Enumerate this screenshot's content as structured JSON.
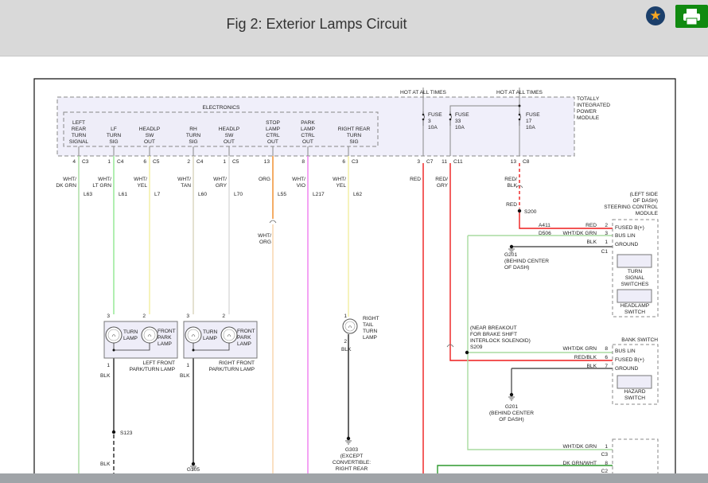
{
  "header": {
    "title": "Fig 2: Exterior Lamps Circuit",
    "favorite_icon": "star-icon",
    "print_icon": "printer-icon",
    "brand_color": "#108a10"
  },
  "diagram": {
    "tipm": {
      "label": [
        "TOTALLY",
        "INTEGRATED",
        "POWER",
        "MODULE"
      ],
      "hot": [
        "HOT AT ALL TIMES",
        "HOT AT ALL TIMES"
      ],
      "fuses": [
        {
          "lines": [
            "FUSE",
            "3",
            "10A"
          ]
        },
        {
          "lines": [
            "FUSE",
            "33",
            "10A"
          ]
        },
        {
          "lines": [
            "FUSE",
            "17",
            "10A"
          ]
        }
      ],
      "pins": [
        {
          "pin": "3",
          "conn": "C7",
          "color": [
            "RED"
          ]
        },
        {
          "pin": "11",
          "conn": "C11",
          "color": [
            "RED/",
            "GRY"
          ]
        },
        {
          "pin": "13",
          "conn": "C8",
          "color": [
            "RED/",
            "BLK"
          ]
        }
      ]
    },
    "electronics": {
      "label": "ELECTRONICS",
      "outputs": [
        {
          "lines": [
            "LEFT",
            "REAR",
            "TURN",
            "SIGNAL"
          ],
          "pin": "4",
          "conn": "C3",
          "color": [
            "WHT/",
            "DK GRN"
          ],
          "circuit": "L63"
        },
        {
          "lines": [
            "LF",
            "TURN",
            "SIG"
          ],
          "pin": "1",
          "conn": "C4",
          "color": [
            "WHT/",
            "LT GRN"
          ],
          "circuit": "L61"
        },
        {
          "lines": [
            "HEADLP",
            "SW",
            "OUT"
          ],
          "pin": "6",
          "conn": "C5",
          "color": [
            "WHT/",
            "YEL"
          ],
          "circuit": "L7"
        },
        {
          "lines": [
            "RH",
            "TURN",
            "SIG"
          ],
          "pin": "2",
          "conn": "C4",
          "color": [
            "WHT/",
            "TAN"
          ],
          "circuit": "L60"
        },
        {
          "lines": [
            "HEADLP",
            "SW",
            "OUT"
          ],
          "pin": "1",
          "conn": "C5",
          "color": [
            "WHT/",
            "GRY"
          ],
          "circuit": "L70"
        },
        {
          "lines": [
            "STOP",
            "LAMP",
            "CTRL",
            "OUT"
          ],
          "pin": "13",
          "conn": "",
          "color": [
            "ORG"
          ],
          "circuit": "L55"
        },
        {
          "lines": [
            "PARK",
            "LAMP",
            "CTRL",
            "OUT"
          ],
          "pin": "8",
          "conn": "",
          "color": [
            "WHT/",
            "VIO"
          ],
          "circuit": "L217"
        },
        {
          "lines": [
            "RIGHT REAR",
            "TURN",
            "SIG"
          ],
          "pin": "6",
          "conn": "C3",
          "color": [
            "WHT/",
            "YEL"
          ],
          "circuit": "L62"
        }
      ]
    },
    "l55_after": [
      "WHT/",
      "ORG"
    ],
    "red_second": "RED",
    "splice_s200": "S200",
    "steering": {
      "label": [
        "(LEFT SIDE",
        "OF DASH)",
        "STEERING CONTROL",
        "MODULE"
      ],
      "pins": [
        {
          "circuit": "A411",
          "color": "RED",
          "pin": "2",
          "name": "FUSED B(+)"
        },
        {
          "circuit": "D506",
          "color": "WHT/DK GRN",
          "pin": "3",
          "name": "BUS LIN"
        },
        {
          "circuit": "",
          "color": "BLK",
          "pin": "1",
          "name": "GROUND"
        }
      ],
      "conn": "C1",
      "turn_switch": [
        "TURN",
        "SIGNAL",
        "SWITCHES"
      ],
      "headlamp_switch": [
        "HEADLAMP",
        "SWITCH"
      ]
    },
    "ground_g201a": [
      "G201",
      "(BEHIND CENTER",
      "OF DASH)"
    ],
    "splice_s209": [
      "(NEAR BREAKOUT",
      "FOR BRAKE SHIFT",
      "INTERLOCK SOLENOID)",
      "S209"
    ],
    "bank": {
      "label": "BANK SWITCH",
      "pins": [
        {
          "color": "WHT/DK GRN",
          "pin": "8",
          "name": "BUS LIN"
        },
        {
          "color": "RED/BLK",
          "pin": "6",
          "name": "FUSED B(+)"
        },
        {
          "color": "BLK",
          "pin": "7",
          "name": "GROUND"
        }
      ],
      "hazard": [
        "HAZARD",
        "SWITCH"
      ]
    },
    "ground_g201b": [
      "G201",
      "(BEHIND CENTER",
      "OF DASH)"
    ],
    "bottom_module": {
      "pins": [
        {
          "color": "WHT/DK GRN",
          "pin": "1",
          "conn": "C3"
        },
        {
          "color": "DK GRN/WHT",
          "pin": "8",
          "conn": "C2"
        }
      ]
    },
    "left_lamp": {
      "pin_turn": "3",
      "pin_park": "2",
      "turn": [
        "TURN",
        "LAMP"
      ],
      "park": [
        "FRONT",
        "PARK",
        "LAMP"
      ],
      "ground_pin": "1",
      "name": [
        "LEFT FRONT",
        "PARK/TURN LAMP"
      ],
      "wire": "BLK",
      "splice": "S123",
      "wire2": "BLK"
    },
    "right_lamp": {
      "pin_turn": "3",
      "pin_park": "2",
      "turn": [
        "TURN",
        "LAMP"
      ],
      "park": [
        "FRONT",
        "PARK",
        "LAMP"
      ],
      "ground_pin": "1",
      "name": [
        "RIGHT FRONT",
        "PARK/TURN LAMP"
      ],
      "wire": "BLK",
      "ground": "G105"
    },
    "tail_lamp": {
      "pin1": "1",
      "pin2": "2",
      "name": [
        "RIGHT",
        "TAIL",
        "TURN",
        "LAMP"
      ],
      "wire": "BLK",
      "ground": [
        "G303",
        "(EXCEPT",
        "CONVERTIBLE:",
        "RIGHT REAR"
      ]
    },
    "colors": {
      "red": "#ee1c1c",
      "lt_green": "#a8dca0",
      "green": "#2e9a2e",
      "orange": "#f08a24",
      "lt_orange": "#f8d2a8",
      "violet": "#f07cf0",
      "yellow": "#f2eea0",
      "tan": "#d8d4bc",
      "gray": "#d8d8d8",
      "blk": "#555555",
      "module_fill": "#f0effa"
    }
  }
}
